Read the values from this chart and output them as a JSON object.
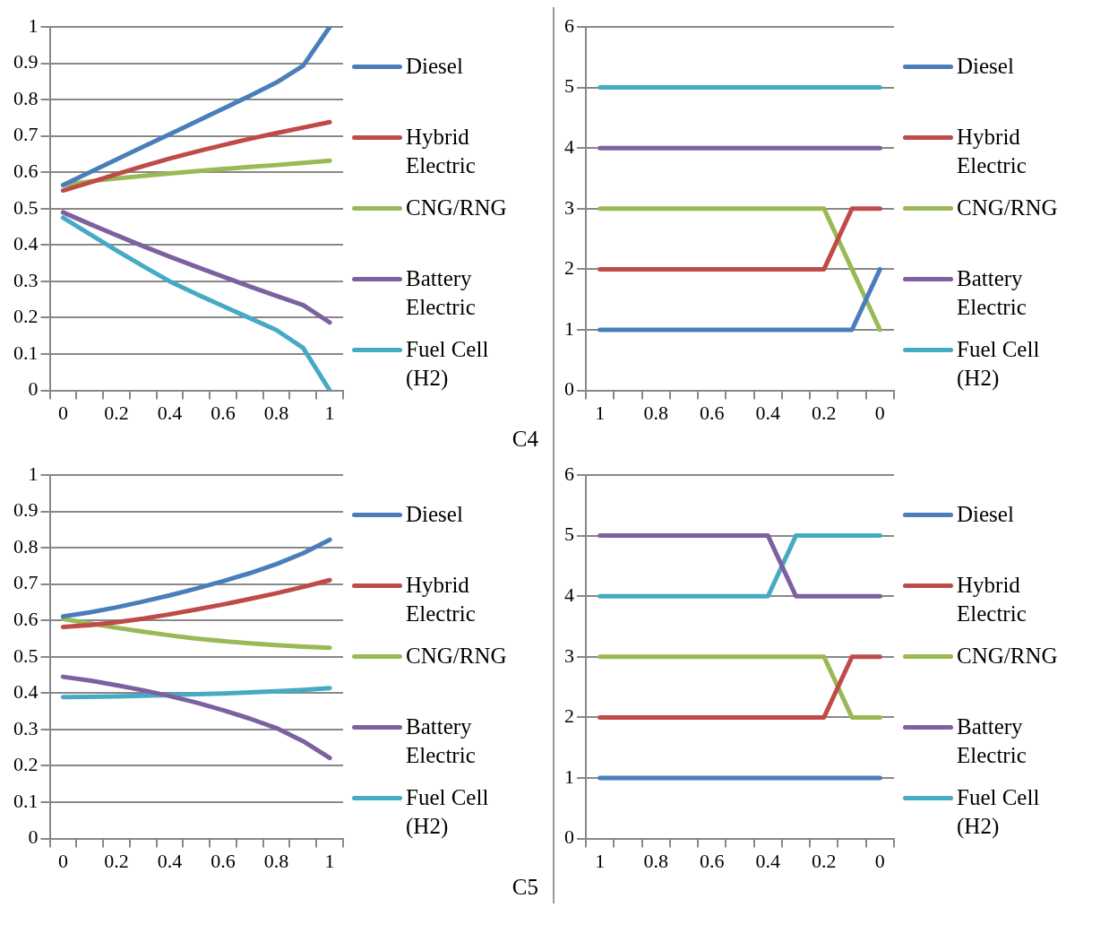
{
  "chart_data": [
    {
      "type": "line",
      "categories": [
        "0",
        null,
        "0.2",
        null,
        "0.4",
        null,
        "0.6",
        null,
        "0.8",
        null,
        "1"
      ],
      "ylim": [
        0,
        1
      ],
      "yticks": [
        0,
        0.1,
        0.2,
        0.3,
        0.4,
        0.5,
        0.6,
        0.7,
        0.8,
        0.9,
        1
      ],
      "grid": "y",
      "legend": "right",
      "marker": "none",
      "annotations": [
        "C4"
      ],
      "series": [
        {
          "name": "Diesel",
          "color": "#4a7ebb",
          "values": [
            0.565,
            0.6,
            0.635,
            0.67,
            0.705,
            0.74,
            0.775,
            0.81,
            0.847,
            0.893,
            1
          ]
        },
        {
          "name": "Hybrid Electric",
          "color": "#be4b48",
          "values": [
            0.55,
            0.572,
            0.595,
            0.617,
            0.638,
            0.657,
            0.675,
            0.692,
            0.708,
            0.723,
            0.738
          ]
        },
        {
          "name": "CNG/RNG",
          "color": "#98b954",
          "values": [
            0.565,
            0.575,
            0.583,
            0.59,
            0.597,
            0.603,
            0.609,
            0.615,
            0.62,
            0.626,
            0.632
          ]
        },
        {
          "name": "Battery Electric",
          "color": "#7d60a0",
          "values": [
            0.49,
            0.458,
            0.427,
            0.397,
            0.368,
            0.34,
            0.313,
            0.286,
            0.26,
            0.235,
            0.187
          ]
        },
        {
          "name": "Fuel Cell (H2)",
          "color": "#46aac5",
          "values": [
            0.475,
            0.43,
            0.385,
            0.342,
            0.3,
            0.265,
            0.232,
            0.199,
            0.166,
            0.117,
            0
          ]
        }
      ]
    },
    {
      "type": "line",
      "categories": [
        "1",
        null,
        "0.8",
        null,
        "0.6",
        null,
        "0.4",
        null,
        "0.2",
        null,
        "0"
      ],
      "ylim": [
        0,
        6
      ],
      "yticks": [
        0,
        1,
        2,
        3,
        4,
        5,
        6
      ],
      "grid": "y",
      "legend": "right",
      "marker": "none",
      "series": [
        {
          "name": "Diesel",
          "color": "#4a7ebb",
          "values": [
            1,
            1,
            1,
            1,
            1,
            1,
            1,
            1,
            1,
            1,
            2
          ]
        },
        {
          "name": "Hybrid Electric",
          "color": "#be4b48",
          "values": [
            2,
            2,
            2,
            2,
            2,
            2,
            2,
            2,
            2,
            3,
            3
          ]
        },
        {
          "name": "CNG/RNG",
          "color": "#98b954",
          "values": [
            3,
            3,
            3,
            3,
            3,
            3,
            3,
            3,
            3,
            2,
            1
          ]
        },
        {
          "name": "Battery Electric",
          "color": "#7d60a0",
          "values": [
            4,
            4,
            4,
            4,
            4,
            4,
            4,
            4,
            4,
            4,
            4
          ]
        },
        {
          "name": "Fuel Cell (H2)",
          "color": "#46aac5",
          "values": [
            5,
            5,
            5,
            5,
            5,
            5,
            5,
            5,
            5,
            5,
            5
          ]
        }
      ]
    },
    {
      "type": "line",
      "categories": [
        "0",
        null,
        "0.2",
        null,
        "0.4",
        null,
        "0.6",
        null,
        "0.8",
        null,
        "1"
      ],
      "ylim": [
        0,
        1
      ],
      "yticks": [
        0,
        0.1,
        0.2,
        0.3,
        0.4,
        0.5,
        0.6,
        0.7,
        0.8,
        0.9,
        1
      ],
      "grid": "y",
      "legend": "right",
      "marker": "none",
      "annotations": [
        "C5"
      ],
      "series": [
        {
          "name": "Diesel",
          "color": "#4a7ebb",
          "values": [
            0.611,
            0.622,
            0.636,
            0.652,
            0.669,
            0.688,
            0.708,
            0.73,
            0.755,
            0.785,
            0.822
          ]
        },
        {
          "name": "Hybrid Electric",
          "color": "#be4b48",
          "values": [
            0.582,
            0.587,
            0.595,
            0.605,
            0.617,
            0.63,
            0.644,
            0.659,
            0.675,
            0.692,
            0.711
          ]
        },
        {
          "name": "CNG/RNG",
          "color": "#98b954",
          "values": [
            0.604,
            0.592,
            0.58,
            0.569,
            0.559,
            0.55,
            0.543,
            0.537,
            0.532,
            0.528,
            0.525
          ]
        },
        {
          "name": "Battery Electric",
          "color": "#7d60a0",
          "values": [
            0.445,
            0.435,
            0.422,
            0.408,
            0.392,
            0.374,
            0.353,
            0.33,
            0.304,
            0.268,
            0.222
          ]
        },
        {
          "name": "Fuel Cell (H2)",
          "color": "#46aac5",
          "values": [
            0.389,
            0.39,
            0.391,
            0.393,
            0.395,
            0.397,
            0.399,
            0.402,
            0.405,
            0.409,
            0.414
          ]
        }
      ]
    },
    {
      "type": "line",
      "categories": [
        "1",
        null,
        "0.8",
        null,
        "0.6",
        null,
        "0.4",
        null,
        "0.2",
        null,
        "0"
      ],
      "ylim": [
        0,
        6
      ],
      "yticks": [
        0,
        1,
        2,
        3,
        4,
        5,
        6
      ],
      "grid": "y",
      "legend": "right",
      "marker": "none",
      "series": [
        {
          "name": "Diesel",
          "color": "#4a7ebb",
          "values": [
            1,
            1,
            1,
            1,
            1,
            1,
            1,
            1,
            1,
            1,
            1
          ]
        },
        {
          "name": "Hybrid Electric",
          "color": "#be4b48",
          "values": [
            2,
            2,
            2,
            2,
            2,
            2,
            2,
            2,
            2,
            3,
            3
          ]
        },
        {
          "name": "CNG/RNG",
          "color": "#98b954",
          "values": [
            3,
            3,
            3,
            3,
            3,
            3,
            3,
            3,
            3,
            2,
            2
          ]
        },
        {
          "name": "Battery Electric",
          "color": "#7d60a0",
          "values": [
            5,
            5,
            5,
            5,
            5,
            5,
            5,
            4,
            4,
            4,
            4
          ]
        },
        {
          "name": "Fuel Cell (H2)",
          "color": "#46aac5",
          "values": [
            4,
            4,
            4,
            4,
            4,
            4,
            4,
            5,
            5,
            5,
            5
          ]
        }
      ]
    }
  ]
}
